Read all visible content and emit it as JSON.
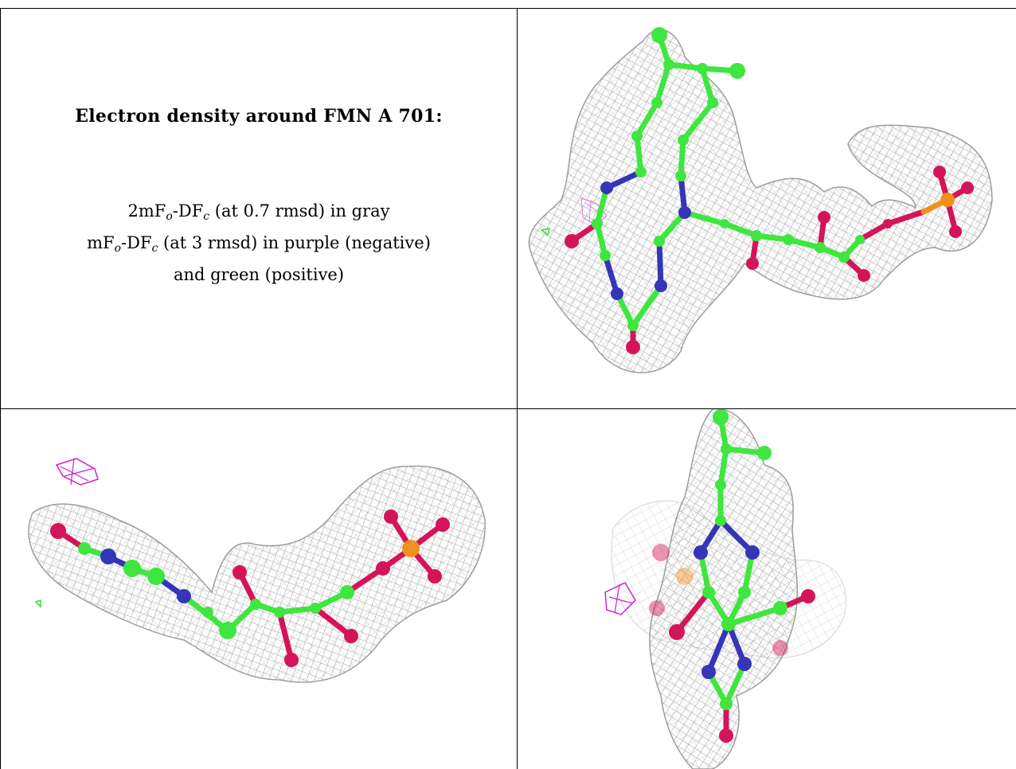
{
  "panel_caption": {
    "title": "Electron density around FMN A 701:",
    "line1_prefix": "2mF",
    "line1_sub1": "o",
    "line1_mid": "-DF",
    "line1_sub2": "c",
    "line1_suffix": " (at 0.7 rmsd) in gray",
    "line2_prefix": "mF",
    "line2_sub1": "o",
    "line2_mid": "-DF",
    "line2_sub2": "c",
    "line2_suffix": " (at 3 rmsd) in purple (negative)",
    "line3": "and green (positive)"
  },
  "colors": {
    "mesh_gray": "#a8a8a8",
    "carbon_green": "#3ee63e",
    "nitrogen_blue": "#3535b8",
    "oxygen_red": "#d4145a",
    "phosphorus_orange": "#f0901e",
    "negative_purple": "#cc22cc",
    "positive_green": "#33dd33"
  },
  "views": [
    {
      "name": "view-front"
    },
    {
      "name": "view-side"
    },
    {
      "name": "view-top"
    }
  ]
}
